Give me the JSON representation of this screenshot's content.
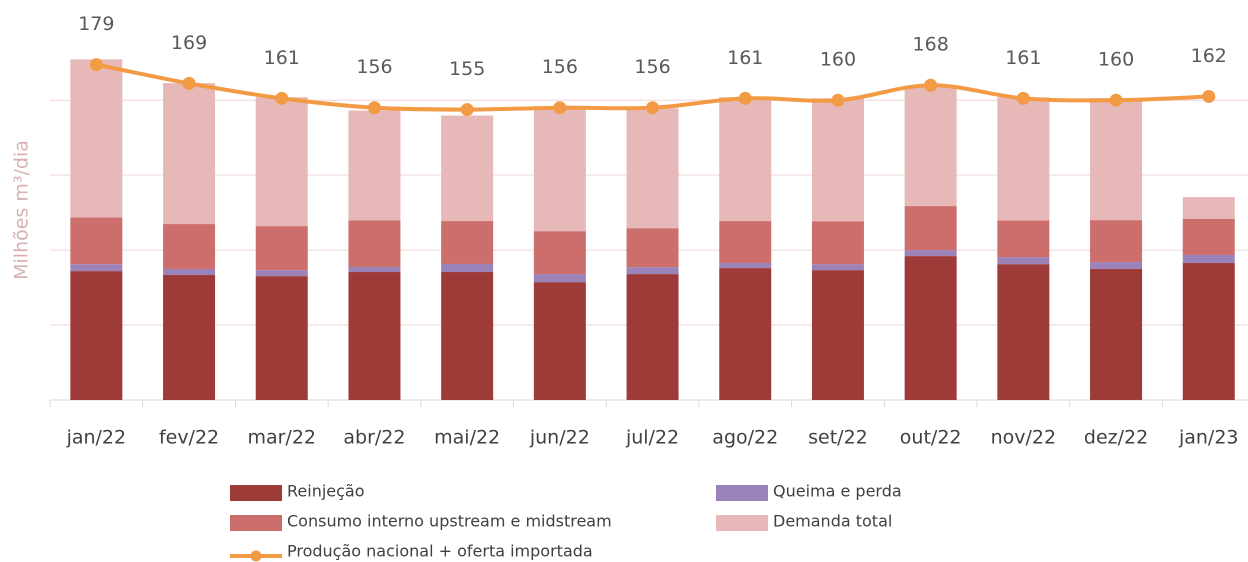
{
  "chart_data": {
    "type": "bar",
    "stacked": true,
    "y_label": "Milhões m³/dia",
    "categories": [
      "jan/22",
      "fev/22",
      "mar/22",
      "abr/22",
      "mai/22",
      "jun/22",
      "jul/22",
      "ago/22",
      "set/22",
      "out/22",
      "nov/22",
      "dez/22",
      "jan/23"
    ],
    "series": [
      {
        "name": "Reinjeção",
        "color": "#9e3a38",
        "values": [
          68.8,
          66.7,
          66.1,
          68.3,
          68.3,
          62.9,
          67.2,
          70.4,
          69.3,
          76.8,
          72.5,
          69.9,
          73.1
        ]
      },
      {
        "name": "Queima e perda",
        "color": "#9b82b8",
        "values": [
          3.7,
          3.2,
          3.2,
          2.7,
          4.3,
          4.3,
          3.7,
          2.7,
          3.2,
          3.2,
          3.7,
          3.7,
          4.3
        ]
      },
      {
        "name": "Consumo interno upstream e midstream",
        "color": "#cb6e6c",
        "values": [
          25,
          24,
          23.5,
          24.8,
          22.9,
          22.9,
          20.8,
          22.4,
          22.9,
          23.5,
          19.7,
          22.4,
          19.2
        ]
      },
      {
        "name": "Demanda total",
        "color": "#e6b8b7",
        "values": [
          84.3,
          75.2,
          68.8,
          58.7,
          56.3,
          66.1,
          64,
          66.1,
          65.6,
          63.5,
          65.6,
          65.1,
          11.7
        ]
      },
      {
        "name": "Produção nacional + oferta importada",
        "type": "line",
        "color": "#f39a45",
        "values": [
          179,
          169,
          161,
          156,
          155,
          156,
          156,
          161,
          160,
          168,
          161,
          160,
          162
        ]
      }
    ],
    "ylim": [
      0,
      190
    ],
    "yticks": [
      0,
      40,
      80,
      120,
      160
    ],
    "grid": true
  }
}
